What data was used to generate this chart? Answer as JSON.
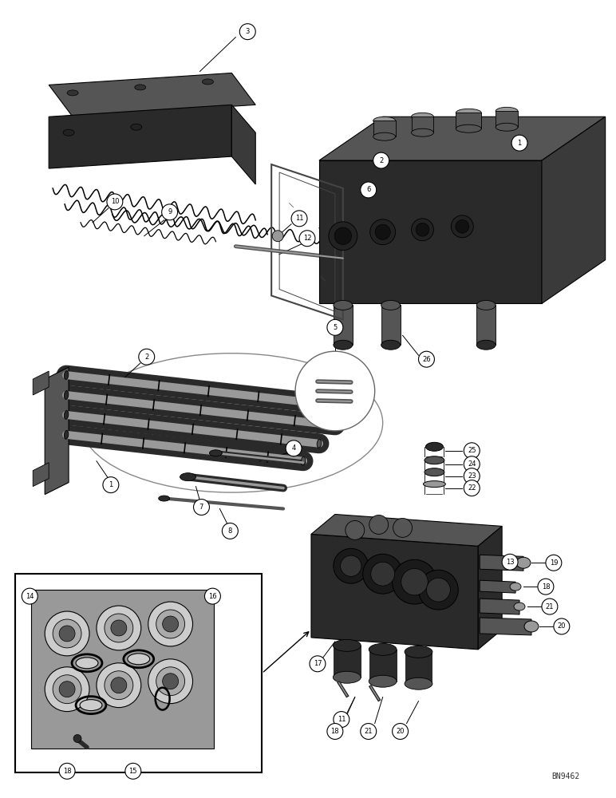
{
  "background_color": "#ffffff",
  "figure_width": 7.72,
  "figure_height": 10.0,
  "watermark": "BN9462",
  "line_color": "#000000",
  "dark_gray": "#2a2a2a",
  "mid_gray": "#555555",
  "light_gray": "#999999",
  "very_light_gray": "#cccccc",
  "label_font_size": 7.5,
  "watermark_font_size": 7
}
